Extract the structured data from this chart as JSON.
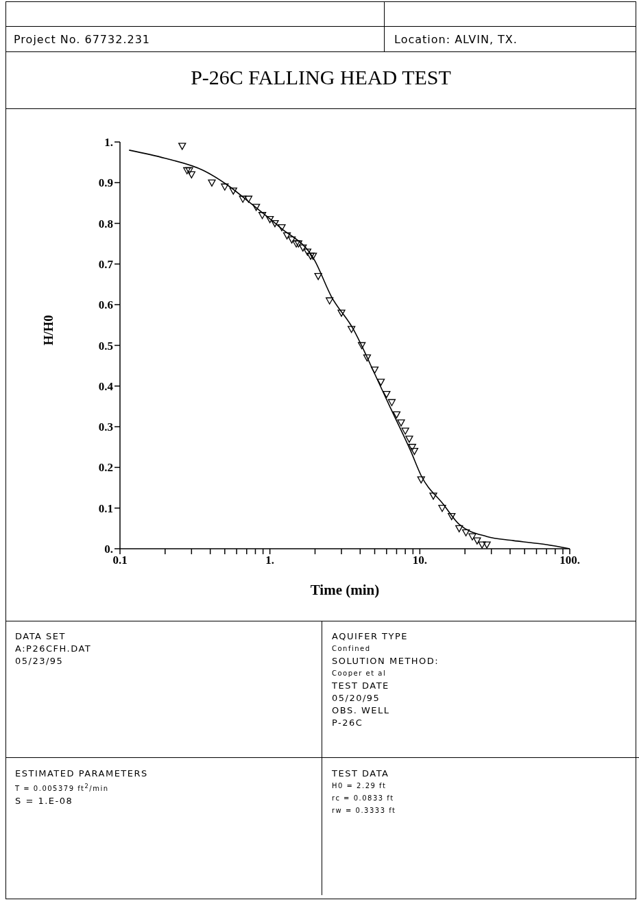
{
  "chart_data": {
    "type": "scatter",
    "title": "P-26C FALLING HEAD TEST",
    "xlabel": "Time (min)",
    "ylabel": "H/H0",
    "log": "x",
    "xlim": [
      0.1,
      100
    ],
    "xticks": [
      {
        "value": 0.1,
        "label": "0.1"
      },
      {
        "value": 0.2,
        "label": null
      },
      {
        "value": 0.3,
        "label": null
      },
      {
        "value": 0.4,
        "label": null
      },
      {
        "value": 0.5,
        "label": null
      },
      {
        "value": 0.6,
        "label": null
      },
      {
        "value": 0.7,
        "label": null
      },
      {
        "value": 0.8,
        "label": null
      },
      {
        "value": 0.9,
        "label": null
      },
      {
        "value": 1,
        "label": "1."
      },
      {
        "value": 2,
        "label": null
      },
      {
        "value": 3,
        "label": null
      },
      {
        "value": 4,
        "label": null
      },
      {
        "value": 5,
        "label": null
      },
      {
        "value": 6,
        "label": null
      },
      {
        "value": 7,
        "label": null
      },
      {
        "value": 8,
        "label": null
      },
      {
        "value": 9,
        "label": null
      },
      {
        "value": 10,
        "label": "10."
      },
      {
        "value": 20,
        "label": null
      },
      {
        "value": 30,
        "label": null
      },
      {
        "value": 40,
        "label": null
      },
      {
        "value": 50,
        "label": null
      },
      {
        "value": 60,
        "label": null
      },
      {
        "value": 70,
        "label": null
      },
      {
        "value": 80,
        "label": null
      },
      {
        "value": 90,
        "label": null
      },
      {
        "value": 100,
        "label": "100."
      }
    ],
    "ylim": [
      0,
      1
    ],
    "yticks": [
      {
        "value": 0,
        "label": "0."
      },
      0.1,
      0.2,
      0.3,
      0.4,
      0.5,
      0.6,
      0.7,
      0.8,
      0.9,
      {
        "value": 1,
        "label": "1."
      }
    ],
    "series": [
      {
        "marker": "triangle",
        "color": "#000000",
        "x": [
          0.26,
          0.28,
          0.29,
          0.3,
          0.41,
          0.5,
          0.57,
          0.66,
          0.72,
          0.81,
          0.89,
          1.0,
          1.08,
          1.2,
          1.3,
          1.4,
          1.5,
          1.55,
          1.66,
          1.78,
          1.87,
          1.94,
          2.1,
          2.5,
          3.0,
          3.5,
          4.1,
          4.45,
          5.0,
          5.5,
          6.0,
          6.5,
          7.0,
          7.5,
          8.0,
          8.5,
          8.9,
          9.2,
          10.2,
          12.3,
          14.1,
          16.3,
          18.3,
          20.3,
          22.4,
          24.1,
          26,
          28
        ],
        "values": [
          0.99,
          0.93,
          0.93,
          0.92,
          0.9,
          0.89,
          0.88,
          0.86,
          0.86,
          0.84,
          0.82,
          0.81,
          0.8,
          0.79,
          0.77,
          0.76,
          0.75,
          0.75,
          0.74,
          0.73,
          0.72,
          0.72,
          0.67,
          0.61,
          0.58,
          0.54,
          0.5,
          0.47,
          0.44,
          0.41,
          0.38,
          0.36,
          0.33,
          0.31,
          0.29,
          0.27,
          0.25,
          0.24,
          0.17,
          0.13,
          0.1,
          0.08,
          0.05,
          0.04,
          0.03,
          0.02,
          0.01,
          0.01
        ]
      },
      {
        "type": "line",
        "marker": "none",
        "color": "#000000",
        "x": [
          0.115,
          0.2,
          0.36,
          0.54,
          0.74,
          1.17,
          1.98,
          2.57,
          3.6,
          5.0,
          6.3,
          8.7,
          10.2,
          14.3,
          18.3,
          28,
          42,
          70,
          100
        ],
        "values": [
          0.98,
          0.96,
          0.93,
          0.89,
          0.85,
          0.79,
          0.71,
          0.62,
          0.54,
          0.43,
          0.35,
          0.24,
          0.18,
          0.11,
          0.06,
          0.03,
          0.02,
          0.01,
          0.0
        ]
      }
    ],
    "annotations": [
      "Project No. 67732.231",
      "Location: ALVIN, TX.",
      "DATA SET",
      "A:P26CFH.DAT",
      "05/23/95",
      "AQUIFER TYPE",
      "Confined",
      "SOLUTION METHOD:",
      "Cooper et al",
      "TEST DATE",
      "05/20/95",
      "OBS. WELL",
      "P-26C",
      "ESTIMATED PARAMETERS",
      "T = 0.005379 ft$^{2}$/min",
      "S = 1.E-08",
      "TEST DATA",
      "H0 = 2.29 ft",
      "rc = 0.0833 ft",
      "rw = 0.3333 ft"
    ]
  }
}
